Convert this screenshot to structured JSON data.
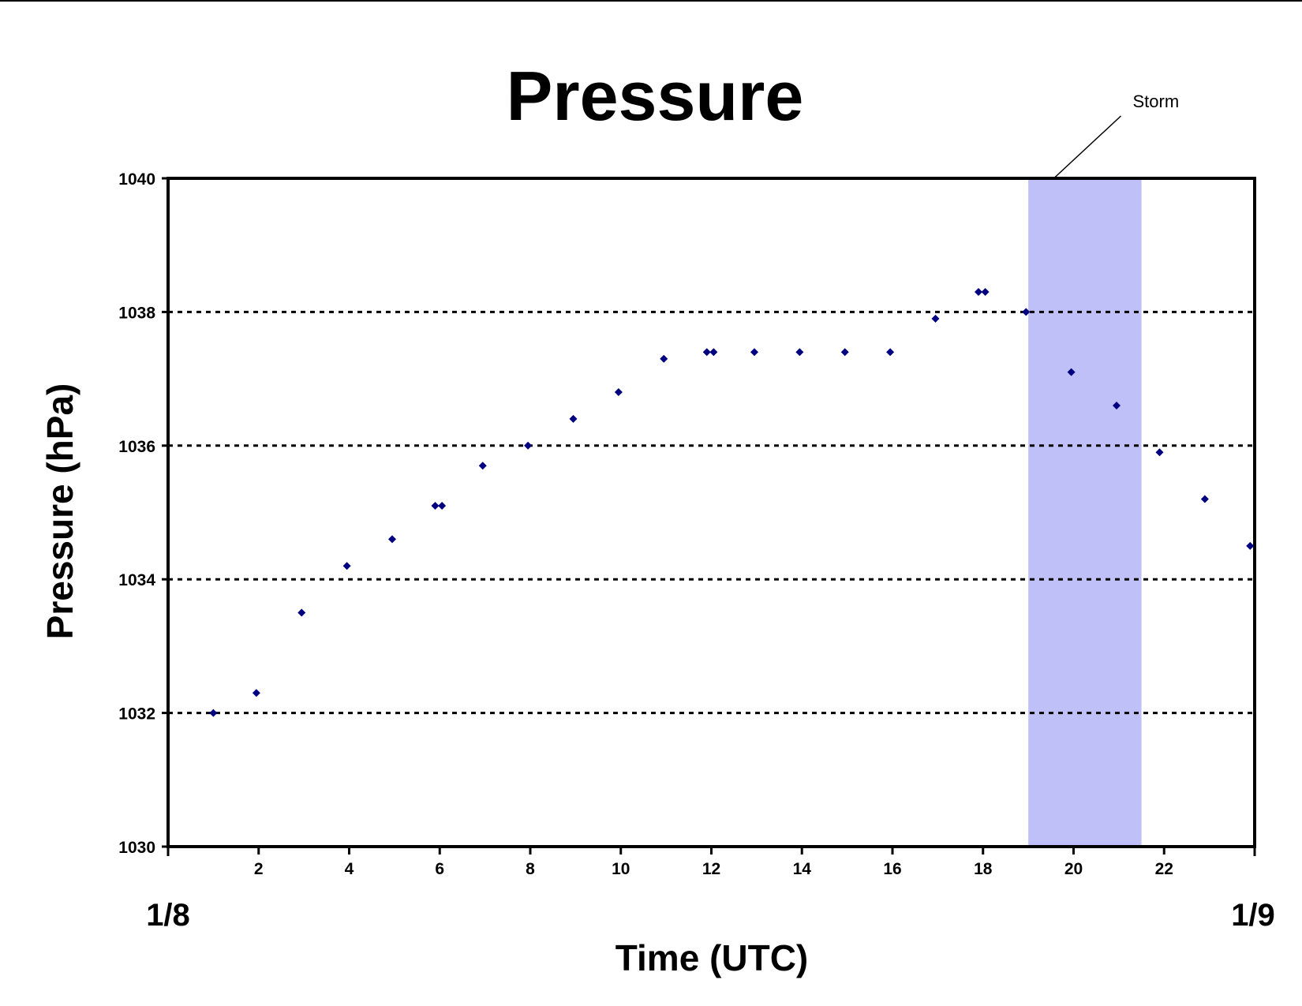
{
  "chart_data": {
    "type": "scatter",
    "title": "Pressure",
    "xlabel": "Time (UTC)",
    "ylabel": "Pressure (hPa)",
    "xlim": [
      0,
      24
    ],
    "ylim": [
      1030,
      1040
    ],
    "x_ticks": [
      2,
      4,
      6,
      8,
      10,
      12,
      14,
      16,
      18,
      20,
      22
    ],
    "x_tick_labels": [
      "2",
      "4",
      "6",
      "8",
      "10",
      "12",
      "14",
      "16",
      "18",
      "20",
      "22"
    ],
    "y_ticks": [
      1030,
      1032,
      1034,
      1036,
      1038,
      1040
    ],
    "y_tick_labels": [
      "1030",
      "1032",
      "1034",
      "1036",
      "1038",
      "1040"
    ],
    "date_labels": {
      "start": "1/8",
      "end": "1/9"
    },
    "grid": {
      "y_dotted": true,
      "x": false
    },
    "shaded_region": {
      "x": [
        19.0,
        21.5
      ],
      "color": "#c0c0f8"
    },
    "annotation": {
      "text": "Storm",
      "points_to_x": 20.0
    },
    "marker_color": "#000080",
    "series": [
      {
        "points": [
          [
            1.0,
            1032.0
          ],
          [
            1.95,
            1032.3
          ],
          [
            2.95,
            1033.5
          ],
          [
            3.95,
            1034.2
          ],
          [
            4.95,
            1034.6
          ],
          [
            5.9,
            1035.1
          ],
          [
            6.05,
            1035.1
          ],
          [
            6.95,
            1035.7
          ],
          [
            7.95,
            1036.0
          ],
          [
            8.95,
            1036.4
          ],
          [
            9.95,
            1036.8
          ],
          [
            10.95,
            1037.3
          ],
          [
            11.9,
            1037.4
          ],
          [
            12.05,
            1037.4
          ],
          [
            12.95,
            1037.4
          ],
          [
            13.95,
            1037.4
          ],
          [
            14.95,
            1037.4
          ],
          [
            15.95,
            1037.4
          ],
          [
            16.95,
            1037.9
          ],
          [
            17.9,
            1038.3
          ],
          [
            18.05,
            1038.3
          ],
          [
            18.95,
            1038.0
          ],
          [
            19.95,
            1037.1
          ],
          [
            20.95,
            1036.6
          ],
          [
            21.9,
            1035.9
          ],
          [
            22.9,
            1035.2
          ],
          [
            23.9,
            1034.5
          ]
        ]
      }
    ]
  }
}
